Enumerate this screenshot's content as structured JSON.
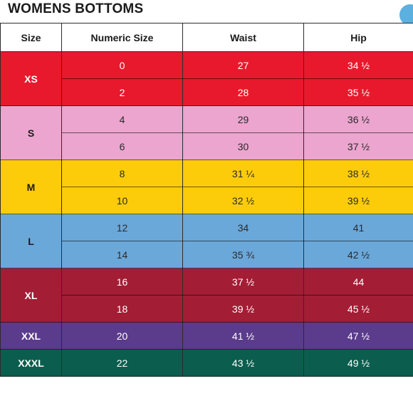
{
  "title": "WOMENS BOTTOMS",
  "headers": [
    "Size",
    "Numeric Size",
    "Waist",
    "Hip"
  ],
  "groups": [
    {
      "size": "XS",
      "color": "#e8192c",
      "text_color": "#ffffff",
      "rows": [
        {
          "numeric": "0",
          "waist": "27",
          "hip": "34 ½"
        },
        {
          "numeric": "2",
          "waist": "28",
          "hip": "35 ½"
        }
      ]
    },
    {
      "size": "S",
      "color": "#eba5cf",
      "text_color": "#2a2a2a",
      "rows": [
        {
          "numeric": "4",
          "waist": "29",
          "hip": "36 ½"
        },
        {
          "numeric": "6",
          "waist": "30",
          "hip": "37 ½"
        }
      ]
    },
    {
      "size": "M",
      "color": "#fccc0a",
      "text_color": "#2a2a2a",
      "rows": [
        {
          "numeric": "8",
          "waist": "31 ¼",
          "hip": "38 ½"
        },
        {
          "numeric": "10",
          "waist": "32 ½",
          "hip": "39 ½"
        }
      ]
    },
    {
      "size": "L",
      "color": "#6ba8da",
      "text_color": "#2a2a2a",
      "rows": [
        {
          "numeric": "12",
          "waist": "34",
          "hip": "41"
        },
        {
          "numeric": "14",
          "waist": "35 ¾",
          "hip": "42 ½"
        }
      ]
    },
    {
      "size": "XL",
      "color": "#a31d35",
      "text_color": "#ffffff",
      "rows": [
        {
          "numeric": "16",
          "waist": "37 ½",
          "hip": "44"
        },
        {
          "numeric": "18",
          "waist": "39 ½",
          "hip": "45 ½"
        }
      ]
    },
    {
      "size": "XXL",
      "color": "#5b3b8c",
      "text_color": "#ffffff",
      "rows": [
        {
          "numeric": "20",
          "waist": "41 ½",
          "hip": "47 ½"
        }
      ]
    },
    {
      "size": "XXXL",
      "color": "#0b5e4e",
      "text_color": "#ffffff",
      "rows": [
        {
          "numeric": "22",
          "waist": "43 ½",
          "hip": "49 ½"
        }
      ]
    }
  ],
  "icons": {
    "corner": "circle-badge-icon"
  }
}
